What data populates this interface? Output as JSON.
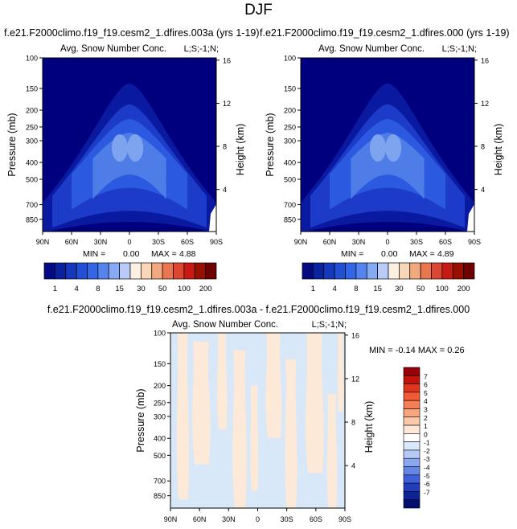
{
  "title": "DJF",
  "colors": {
    "fill_levels": [
      "#00007f",
      "#0a1aa0",
      "#1c3bc8",
      "#2b5ae0",
      "#4f7de8",
      "#7ea4f0",
      "#b0c8f5",
      "#fae3cf"
    ],
    "abs_scale": [
      "#050a83",
      "#0a229e",
      "#1638bc",
      "#2250d4",
      "#3366e6",
      "#5684ee",
      "#86aaf3",
      "#b8ccf7",
      "#fbf0e2",
      "#f8d6b8",
      "#f2a97f",
      "#ea7650",
      "#dd4631",
      "#c81a14",
      "#981000",
      "#6f0000"
    ],
    "diff_scale": [
      "#98000a",
      "#c3140c",
      "#e0351b",
      "#f05a34",
      "#f67e55",
      "#f9a47d",
      "#fcc9a8",
      "#fde7d7",
      "#ffffff",
      "#dbe7fb",
      "#b4c9f6",
      "#8aa8f0",
      "#6385e6",
      "#3e60d8",
      "#1f3dbd",
      "#0c2498",
      "#030f6e"
    ],
    "diff_pos": "#fde9d7",
    "diff_neg": "#d9e8f8"
  },
  "panels": [
    {
      "case": "f.e21.F2000climo.f19_f19.cesm2_1.dfires.003a (yrs 1-19)",
      "variable": "Avg. Snow Number Conc.",
      "code": "L;S;-1;N;",
      "min_label": "MIN =",
      "min": "0.00",
      "max_label": "MAX =",
      "max": "4.88"
    },
    {
      "case": "f.e21.F2000climo.f19_f19.cesm2_1.dfires.000 (yrs 1-19)",
      "variable": "Avg. Snow Number Conc.",
      "code": "L;S;-1;N;",
      "min_label": "MIN =",
      "min": "0.00",
      "max_label": "MAX =",
      "max": "4.89"
    }
  ],
  "diff_panel": {
    "title": "f.e21.F2000climo.f19_f19.cesm2_1.dfires.003a - f.e21.F2000climo.f19_f19.cesm2_1.dfires.000",
    "variable": "Avg. Snow Number Conc.",
    "code": "L;S;-1;N;",
    "minmax": "MIN = -0.14  MAX =  0.26"
  },
  "chart_data": [
    {
      "type": "heatmap",
      "title": "Avg. Snow Number Conc.",
      "xlabel": "",
      "ylabel": "Pressure (mb)",
      "y2label": "Height (km)",
      "x_ticks": [
        "90N",
        "60N",
        "30N",
        "0",
        "30S",
        "60S",
        "90S"
      ],
      "y_ticks": [
        "100",
        "150",
        "200",
        "250",
        "300",
        "400",
        "500",
        "700",
        "850"
      ],
      "y2_ticks": [
        "16",
        "12",
        "8",
        "4"
      ],
      "ylim_mb": [
        1000,
        100
      ],
      "colorbar_labels": [
        "1",
        "4",
        "8",
        "15",
        "30",
        "50",
        "100",
        "200"
      ],
      "min": 0.0,
      "max": 4.88
    },
    {
      "type": "heatmap",
      "title": "Avg. Snow Number Conc.",
      "xlabel": "",
      "ylabel": "Pressure (mb)",
      "y2label": "Height (km)",
      "x_ticks": [
        "90N",
        "60N",
        "30N",
        "0",
        "30S",
        "60S",
        "90S"
      ],
      "y_ticks": [
        "100",
        "150",
        "200",
        "250",
        "300",
        "400",
        "500",
        "700",
        "850"
      ],
      "y2_ticks": [
        "16",
        "12",
        "8",
        "4"
      ],
      "ylim_mb": [
        1000,
        100
      ],
      "colorbar_labels": [
        "1",
        "4",
        "8",
        "15",
        "30",
        "50",
        "100",
        "200"
      ],
      "min": 0.0,
      "max": 4.89
    },
    {
      "type": "heatmap",
      "title": "Avg. Snow Number Conc.",
      "xlabel": "",
      "ylabel": "Pressure (mb)",
      "y2label": "Height (km)",
      "x_ticks": [
        "90N",
        "60N",
        "30N",
        "0",
        "30S",
        "60S",
        "90S"
      ],
      "y_ticks": [
        "100",
        "150",
        "200",
        "250",
        "300",
        "400",
        "500",
        "700",
        "850"
      ],
      "y2_ticks": [
        "16",
        "12",
        "8",
        "4"
      ],
      "ylim_mb": [
        1000,
        100
      ],
      "colorbar_labels": [
        "7",
        "6",
        "5",
        "4",
        "3",
        "2",
        "1",
        "0",
        "-1",
        "-2",
        "-3",
        "-4",
        "-5",
        "-6",
        "-7"
      ],
      "min": -0.14,
      "max": 0.26
    }
  ]
}
